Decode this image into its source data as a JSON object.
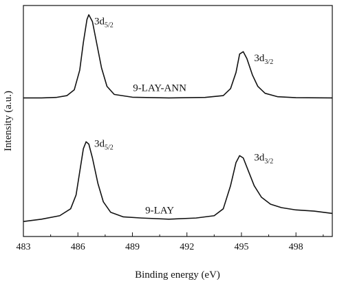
{
  "chart_data": {
    "type": "line",
    "title": "",
    "xlabel": "Binding energy (eV)",
    "ylabel": "Intensity (a.u.)",
    "xlim": [
      483,
      500
    ],
    "xticks": [
      "483",
      "486",
      "489",
      "492",
      "495",
      "498"
    ],
    "yticks_shown": false,
    "grid": false,
    "series": [
      {
        "name": "9-LAY-ANN",
        "values": [
          [
            483.0,
            0.6
          ],
          [
            484.0,
            0.6
          ],
          [
            484.8,
            0.602
          ],
          [
            485.4,
            0.61
          ],
          [
            485.8,
            0.635
          ],
          [
            486.1,
            0.72
          ],
          [
            486.3,
            0.84
          ],
          [
            486.5,
            0.94
          ],
          [
            486.6,
            0.96
          ],
          [
            486.8,
            0.93
          ],
          [
            487.0,
            0.85
          ],
          [
            487.3,
            0.73
          ],
          [
            487.6,
            0.65
          ],
          [
            488.0,
            0.615
          ],
          [
            489.0,
            0.603
          ],
          [
            491.0,
            0.6
          ],
          [
            493.0,
            0.602
          ],
          [
            494.0,
            0.61
          ],
          [
            494.4,
            0.64
          ],
          [
            494.7,
            0.71
          ],
          [
            494.9,
            0.79
          ],
          [
            495.1,
            0.8
          ],
          [
            495.3,
            0.77
          ],
          [
            495.6,
            0.7
          ],
          [
            495.9,
            0.65
          ],
          [
            496.3,
            0.62
          ],
          [
            497.0,
            0.605
          ],
          [
            498.0,
            0.601
          ],
          [
            500.0,
            0.6
          ]
        ]
      },
      {
        "name": "9-LAY",
        "values": [
          [
            483.0,
            0.065
          ],
          [
            484.0,
            0.075
          ],
          [
            485.0,
            0.09
          ],
          [
            485.6,
            0.12
          ],
          [
            485.9,
            0.18
          ],
          [
            486.1,
            0.28
          ],
          [
            486.3,
            0.38
          ],
          [
            486.45,
            0.41
          ],
          [
            486.6,
            0.4
          ],
          [
            486.8,
            0.34
          ],
          [
            487.1,
            0.23
          ],
          [
            487.4,
            0.15
          ],
          [
            487.8,
            0.105
          ],
          [
            488.5,
            0.085
          ],
          [
            489.5,
            0.08
          ],
          [
            491.0,
            0.075
          ],
          [
            492.5,
            0.08
          ],
          [
            493.5,
            0.09
          ],
          [
            494.0,
            0.12
          ],
          [
            494.4,
            0.22
          ],
          [
            494.7,
            0.32
          ],
          [
            494.9,
            0.35
          ],
          [
            495.1,
            0.34
          ],
          [
            495.4,
            0.28
          ],
          [
            495.7,
            0.22
          ],
          [
            496.1,
            0.17
          ],
          [
            496.6,
            0.14
          ],
          [
            497.2,
            0.125
          ],
          [
            498.0,
            0.115
          ],
          [
            499.0,
            0.11
          ],
          [
            500.0,
            0.1
          ]
        ]
      }
    ],
    "annotations": [
      {
        "text": "3d",
        "sub": "5/2",
        "x": 486.9,
        "y": 0.96
      },
      {
        "text": "3d",
        "sub": "3/2",
        "x": 495.7,
        "y": 0.8
      },
      {
        "text": "3d",
        "sub": "5/2",
        "x": 486.9,
        "y": 0.43
      },
      {
        "text": "3d",
        "sub": "3/2",
        "x": 495.7,
        "y": 0.37
      }
    ],
    "trace_labels": [
      {
        "text": "9-LAY-ANN",
        "x": 490.5,
        "y": 0.63
      },
      {
        "text": "9-LAY",
        "x": 490.5,
        "y": 0.1
      }
    ]
  }
}
